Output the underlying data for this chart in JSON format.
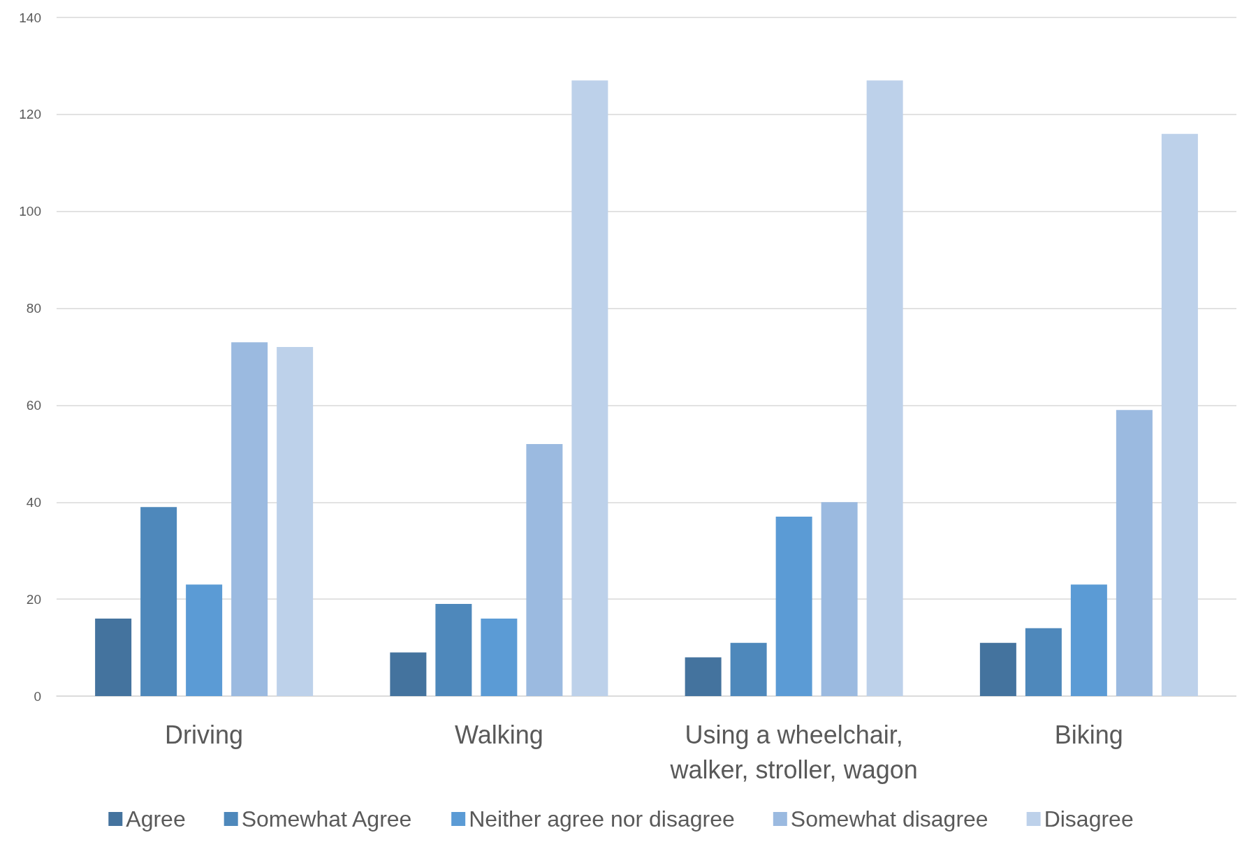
{
  "chart_data": {
    "type": "bar",
    "categories": [
      "Driving",
      "Walking",
      "Using a wheelchair,\nwalker, stroller, wagon",
      "Biking"
    ],
    "series": [
      {
        "name": "Agree",
        "color": "#44739e",
        "values": [
          16,
          9,
          8,
          11
        ]
      },
      {
        "name": "Somewhat Agree",
        "color": "#4e88bb",
        "values": [
          39,
          19,
          11,
          14
        ]
      },
      {
        "name": "Neither agree nor disagree",
        "color": "#5b9bd5",
        "values": [
          23,
          16,
          37,
          23
        ]
      },
      {
        "name": "Somewhat disagree",
        "color": "#9bbae0",
        "values": [
          73,
          52,
          40,
          59
        ]
      },
      {
        "name": "Disagree",
        "color": "#bdd1ea",
        "values": [
          72,
          127,
          127,
          116
        ]
      }
    ],
    "ylim": [
      0,
      140
    ],
    "yticks": [
      0,
      20,
      40,
      60,
      80,
      100,
      120,
      140
    ],
    "grid": "y",
    "legend": "bottom"
  }
}
